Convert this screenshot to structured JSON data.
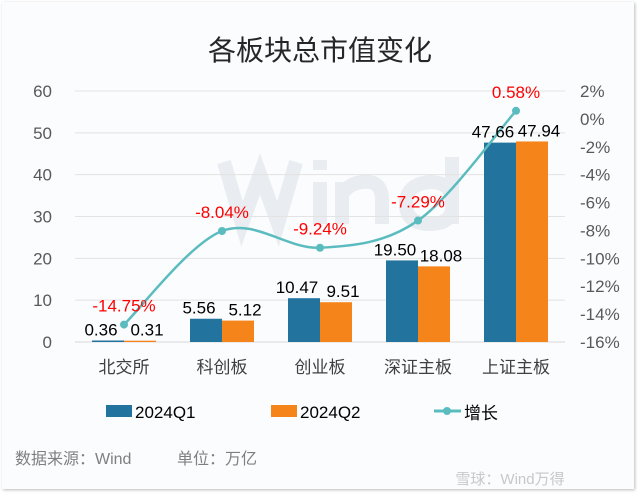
{
  "chart_data": {
    "type": "bar+line",
    "title": "各板块总市值变化",
    "categories": [
      "北交所",
      "科创板",
      "创业板",
      "深证主板",
      "上证主板"
    ],
    "series": [
      {
        "name": "2024Q1",
        "type": "bar",
        "axis": "left",
        "color": "#23739f",
        "values": [
          0.36,
          5.56,
          10.47,
          19.5,
          47.66
        ],
        "labels": [
          "0.36",
          "5.56",
          "10.47",
          "19.50",
          "47.66"
        ]
      },
      {
        "name": "2024Q2",
        "type": "bar",
        "axis": "left",
        "color": "#f5851a",
        "values": [
          0.31,
          5.12,
          9.51,
          18.08,
          47.94
        ],
        "labels": [
          "0.31",
          "5.12",
          "9.51",
          "18.08",
          "47.94"
        ]
      },
      {
        "name": "增长",
        "type": "line",
        "axis": "right",
        "color": "#5bbcbf",
        "values": [
          -14.75,
          -8.04,
          -9.24,
          -7.29,
          0.58
        ],
        "labels": [
          "-14.75%",
          "-8.04%",
          "-9.24%",
          "-7.29%",
          "0.58%"
        ]
      }
    ],
    "left_axis": {
      "ylim": [
        0,
        60
      ],
      "ticks": [
        "0",
        "10",
        "20",
        "30",
        "40",
        "50",
        "60"
      ]
    },
    "right_axis": {
      "ylim": [
        -16,
        2
      ],
      "ticks": [
        "-16%",
        "-14%",
        "-12%",
        "-10%",
        "-8%",
        "-6%",
        "-4%",
        "-2%",
        "0%",
        "2%"
      ]
    },
    "grid": true,
    "legend": "bottom",
    "label_color": "#ff0000"
  },
  "footer": {
    "source": "数据来源：Wind",
    "unit": "单位：万亿"
  },
  "watermark": {
    "text": "Wind",
    "corner": "雪球：Wind万得"
  }
}
